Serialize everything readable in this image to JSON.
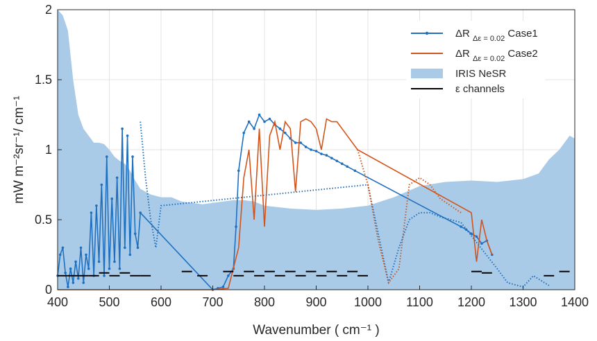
{
  "chart_data": {
    "type": "line",
    "title": "",
    "xlabel": "Wavenumber ( cm⁻¹ )",
    "ylabel": "mW m⁻²sr⁻¹/ cm⁻¹",
    "xlim": [
      400,
      1400
    ],
    "ylim": [
      0,
      2
    ],
    "xticks": [
      "400",
      "500",
      "600",
      "700",
      "800",
      "900",
      "1000",
      "1100",
      "1200",
      "1300",
      "1400"
    ],
    "yticks": [
      "0",
      "0.5",
      "1",
      "1.5",
      "2"
    ],
    "grid": true,
    "legend_position": "top-right",
    "colors": {
      "case1": "#1f6fbf",
      "case2": "#d3541a",
      "nesr": "#a9cbe8",
      "channels": "#000000"
    },
    "series": [
      {
        "name": "IRIS NeSR",
        "kind": "area",
        "x": [
          400,
          410,
          420,
          430,
          440,
          450,
          460,
          470,
          480,
          490,
          500,
          510,
          520,
          530,
          540,
          550,
          560,
          570,
          580,
          590,
          600,
          620,
          640,
          660,
          680,
          700,
          720,
          740,
          760,
          780,
          800,
          850,
          900,
          950,
          1000,
          1050,
          1100,
          1150,
          1200,
          1250,
          1300,
          1330,
          1350,
          1370,
          1390,
          1400
        ],
        "y": [
          2.0,
          1.96,
          1.85,
          1.5,
          1.25,
          1.15,
          1.1,
          1.05,
          1.05,
          1.04,
          1.0,
          0.95,
          0.92,
          0.9,
          0.85,
          0.78,
          0.72,
          0.7,
          0.68,
          0.67,
          0.66,
          0.66,
          0.63,
          0.62,
          0.61,
          0.62,
          0.63,
          0.64,
          0.64,
          0.63,
          0.6,
          0.58,
          0.57,
          0.58,
          0.6,
          0.66,
          0.74,
          0.77,
          0.78,
          0.77,
          0.79,
          0.83,
          0.93,
          1.0,
          1.1,
          1.08
        ]
      },
      {
        "name": "ΔR_{Δε = 0.02} Case1",
        "kind": "line",
        "x": [
          400,
          405,
          410,
          415,
          420,
          425,
          430,
          435,
          440,
          445,
          450,
          455,
          460,
          465,
          470,
          475,
          480,
          485,
          490,
          495,
          500,
          505,
          510,
          515,
          520,
          525,
          530,
          535,
          540,
          545,
          550,
          555,
          560,
          700,
          710,
          720,
          730,
          740,
          745,
          750,
          760,
          770,
          780,
          790,
          800,
          810,
          820,
          830,
          840,
          850,
          860,
          870,
          880,
          890,
          900,
          910,
          920,
          930,
          940,
          950,
          960,
          975,
          1180,
          1190,
          1200,
          1210,
          1220,
          1230,
          1240
        ],
        "y": [
          0.1,
          0.25,
          0.3,
          0.12,
          0.02,
          0.15,
          0.05,
          0.2,
          0.08,
          0.3,
          0.05,
          0.25,
          0.15,
          0.55,
          0.1,
          0.6,
          0.2,
          0.75,
          0.1,
          0.95,
          0.15,
          0.65,
          0.2,
          0.8,
          0.15,
          1.15,
          0.3,
          1.1,
          0.25,
          0.95,
          0.4,
          0.3,
          0.55,
          0.0,
          0.01,
          0.02,
          0.1,
          0.15,
          0.45,
          0.85,
          1.12,
          1.2,
          1.15,
          1.25,
          1.2,
          1.22,
          1.18,
          1.15,
          1.12,
          1.08,
          1.05,
          1.05,
          1.02,
          1.0,
          0.99,
          0.97,
          0.96,
          0.94,
          0.92,
          0.9,
          0.88,
          0.85,
          0.45,
          0.43,
          0.4,
          0.38,
          0.33,
          0.35,
          0.25
        ]
      },
      {
        "name": "ΔR_{Δε = 0.02} Case2",
        "kind": "line",
        "x": [
          400,
          600,
          700,
          730,
          750,
          760,
          770,
          780,
          790,
          800,
          810,
          820,
          830,
          840,
          850,
          860,
          870,
          880,
          890,
          900,
          910,
          920,
          930,
          940,
          950,
          960,
          970,
          980,
          1200,
          1210,
          1220,
          1230,
          1240
        ],
        "y": [
          0.0,
          0.0,
          0.0,
          0.01,
          0.3,
          0.8,
          1.0,
          0.5,
          1.15,
          0.45,
          1.1,
          1.2,
          1.0,
          1.2,
          1.15,
          0.7,
          1.2,
          1.22,
          1.2,
          1.15,
          1.0,
          1.22,
          1.2,
          1.2,
          1.15,
          1.1,
          1.05,
          1.0,
          0.55,
          0.2,
          0.5,
          0.35,
          0.25
        ]
      },
      {
        "name": "ε channels",
        "kind": "segments",
        "segments": [
          [
            400,
            420,
            0.1
          ],
          [
            420,
            440,
            0.1
          ],
          [
            440,
            460,
            0.1
          ],
          [
            460,
            480,
            0.1
          ],
          [
            480,
            500,
            0.12
          ],
          [
            500,
            520,
            0.1
          ],
          [
            520,
            540,
            0.12
          ],
          [
            540,
            560,
            0.1
          ],
          [
            560,
            580,
            0.1
          ],
          [
            640,
            660,
            0.13
          ],
          [
            670,
            690,
            0.1
          ],
          [
            720,
            740,
            0.13
          ],
          [
            740,
            760,
            0.1
          ],
          [
            760,
            780,
            0.13
          ],
          [
            780,
            800,
            0.1
          ],
          [
            800,
            820,
            0.13
          ],
          [
            820,
            840,
            0.1
          ],
          [
            840,
            860,
            0.13
          ],
          [
            860,
            880,
            0.1
          ],
          [
            880,
            900,
            0.13
          ],
          [
            900,
            920,
            0.1
          ],
          [
            920,
            940,
            0.13
          ],
          [
            940,
            960,
            0.1
          ],
          [
            960,
            980,
            0.13
          ],
          [
            980,
            1000,
            0.1
          ],
          [
            1200,
            1220,
            0.13
          ],
          [
            1220,
            1240,
            0.12
          ],
          [
            1340,
            1360,
            0.1
          ],
          [
            1370,
            1390,
            0.13
          ]
        ]
      }
    ],
    "dotted_segments": [
      {
        "series": "ΔR_{Δε = 0.02} Case1",
        "x": [
          560,
          570,
          580,
          590,
          600,
          1000,
          1020,
          1040,
          1060,
          1080,
          1100,
          1120,
          1140,
          1160,
          1180,
          1250,
          1270,
          1300,
          1320,
          1350
        ],
        "y": [
          1.2,
          0.8,
          0.5,
          0.3,
          0.6,
          0.75,
          0.4,
          0.05,
          0.3,
          0.5,
          0.55,
          0.55,
          0.52,
          0.5,
          0.48,
          0.15,
          0.05,
          0.02,
          0.1,
          0.03
        ]
      },
      {
        "series": "ΔR_{Δε = 0.02} Case2",
        "x": [
          980,
          1000,
          1020,
          1040,
          1060,
          1080,
          1100,
          1120,
          1140,
          1160,
          1180
        ],
        "y": [
          1.0,
          0.75,
          0.35,
          0.05,
          0.15,
          0.75,
          0.8,
          0.75,
          0.65,
          0.6,
          0.55
        ]
      }
    ]
  },
  "legend": {
    "items": [
      {
        "label_main": "ΔR",
        "label_sub": "Δε = 0.02",
        "label_tail": " Case1"
      },
      {
        "label_main": "ΔR",
        "label_sub": "Δε = 0.02",
        "label_tail": " Case2"
      },
      {
        "label_main": "IRIS NeSR",
        "label_sub": "",
        "label_tail": ""
      },
      {
        "label_main": "ε channels",
        "label_sub": "",
        "label_tail": ""
      }
    ]
  }
}
